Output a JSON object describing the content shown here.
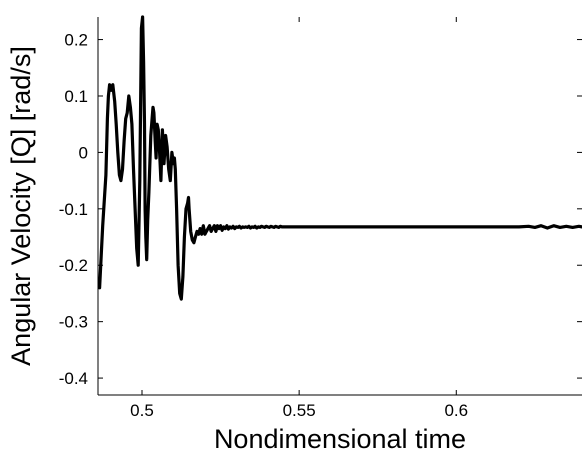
{
  "chart_data": {
    "type": "line",
    "title": "",
    "xlabel": "Nondimensional time",
    "ylabel": "Angular Velocity [Q] [rad/s]",
    "xlim": [
      0.486,
      0.64
    ],
    "ylim": [
      -0.43,
      0.24
    ],
    "xticks": [
      0.5,
      0.55,
      0.6
    ],
    "xtick_labels": [
      "0.5",
      "0.55",
      "0.6"
    ],
    "yticks": [
      0.2,
      0.1,
      0,
      -0.1,
      -0.2,
      -0.3,
      -0.4
    ],
    "ytick_labels": [
      "0.2",
      "0.1",
      "0",
      "-0.1",
      "-0.2",
      "-0.3",
      "-0.4"
    ],
    "grid": false,
    "line_color": "#000000",
    "series": [
      {
        "x": [
          0.4865,
          0.4875,
          0.4885,
          0.489,
          0.4893,
          0.4897,
          0.4902,
          0.4907,
          0.4913,
          0.4918,
          0.4923,
          0.4928,
          0.4933,
          0.4938,
          0.4943,
          0.4948,
          0.4953,
          0.4958,
          0.4963,
          0.4968,
          0.4973,
          0.4978,
          0.4983,
          0.4988,
          0.4993,
          0.4998,
          0.5002,
          0.5005,
          0.5008,
          0.501,
          0.5012,
          0.5015,
          0.5018,
          0.5022,
          0.5028,
          0.5032,
          0.5035,
          0.5038,
          0.5042,
          0.5045,
          0.5048,
          0.5052,
          0.5056,
          0.506,
          0.5065,
          0.507,
          0.5075,
          0.508,
          0.5085,
          0.509,
          0.5095,
          0.51,
          0.5103,
          0.5106,
          0.511,
          0.5115,
          0.512,
          0.5125,
          0.513,
          0.5135,
          0.514,
          0.5145,
          0.5148,
          0.515,
          0.5155,
          0.516,
          0.5165,
          0.517,
          0.5175,
          0.518,
          0.5185,
          0.519,
          0.5195,
          0.52,
          0.5205,
          0.521,
          0.5215,
          0.522,
          0.5225,
          0.523,
          0.5235,
          0.524,
          0.5245,
          0.525,
          0.5255,
          0.526,
          0.5265,
          0.527,
          0.5275,
          0.528,
          0.5285,
          0.529,
          0.5295,
          0.53,
          0.5305,
          0.531,
          0.5315,
          0.532,
          0.5325,
          0.533,
          0.5335,
          0.534,
          0.5345,
          0.535,
          0.5355,
          0.536,
          0.5365,
          0.537,
          0.5375,
          0.538,
          0.5385,
          0.539,
          0.5395,
          0.54,
          0.5405,
          0.541,
          0.5415,
          0.542,
          0.5425,
          0.543,
          0.5435,
          0.544,
          0.5445,
          0.545,
          0.546,
          0.547,
          0.548,
          0.549,
          0.55,
          0.552,
          0.554,
          0.556,
          0.558,
          0.56,
          0.565,
          0.57,
          0.575,
          0.58,
          0.585,
          0.59,
          0.595,
          0.6,
          0.605,
          0.61,
          0.615,
          0.62,
          0.623,
          0.625,
          0.627,
          0.629,
          0.631,
          0.633,
          0.635,
          0.637,
          0.639,
          0.64
        ],
        "y": [
          -0.24,
          -0.13,
          -0.04,
          0.06,
          0.1,
          0.12,
          0.11,
          0.12,
          0.09,
          0.05,
          0.0,
          -0.04,
          -0.05,
          -0.03,
          0.02,
          0.06,
          0.07,
          0.1,
          0.08,
          0.05,
          -0.03,
          -0.1,
          -0.17,
          -0.2,
          -0.05,
          0.22,
          0.24,
          0.16,
          0.05,
          -0.1,
          -0.15,
          -0.19,
          -0.12,
          -0.07,
          0.03,
          0.06,
          0.08,
          0.07,
          0.02,
          -0.01,
          0.05,
          0.04,
          0.0,
          -0.05,
          0.04,
          -0.02,
          0.03,
          0.01,
          -0.03,
          -0.05,
          0.0,
          -0.02,
          -0.01,
          -0.03,
          -0.1,
          -0.2,
          -0.25,
          -0.26,
          -0.22,
          -0.15,
          -0.1,
          -0.09,
          -0.08,
          -0.1,
          -0.14,
          -0.155,
          -0.16,
          -0.15,
          -0.14,
          -0.145,
          -0.135,
          -0.145,
          -0.13,
          -0.145,
          -0.14,
          -0.135,
          -0.13,
          -0.14,
          -0.135,
          -0.13,
          -0.14,
          -0.13,
          -0.135,
          -0.13,
          -0.138,
          -0.132,
          -0.135,
          -0.13,
          -0.136,
          -0.132,
          -0.134,
          -0.131,
          -0.135,
          -0.132,
          -0.133,
          -0.131,
          -0.134,
          -0.132,
          -0.133,
          -0.132,
          -0.133,
          -0.131,
          -0.134,
          -0.132,
          -0.133,
          -0.131,
          -0.134,
          -0.132,
          -0.133,
          -0.131,
          -0.132,
          -0.133,
          -0.131,
          -0.132,
          -0.133,
          -0.131,
          -0.132,
          -0.133,
          -0.131,
          -0.132,
          -0.133,
          -0.131,
          -0.132,
          -0.132,
          -0.132,
          -0.132,
          -0.132,
          -0.132,
          -0.132,
          -0.132,
          -0.132,
          -0.132,
          -0.132,
          -0.132,
          -0.132,
          -0.132,
          -0.132,
          -0.132,
          -0.132,
          -0.132,
          -0.132,
          -0.132,
          -0.132,
          -0.132,
          -0.132,
          -0.132,
          -0.131,
          -0.133,
          -0.13,
          -0.134,
          -0.13,
          -0.133,
          -0.131,
          -0.133,
          -0.131,
          -0.132
        ]
      }
    ]
  }
}
